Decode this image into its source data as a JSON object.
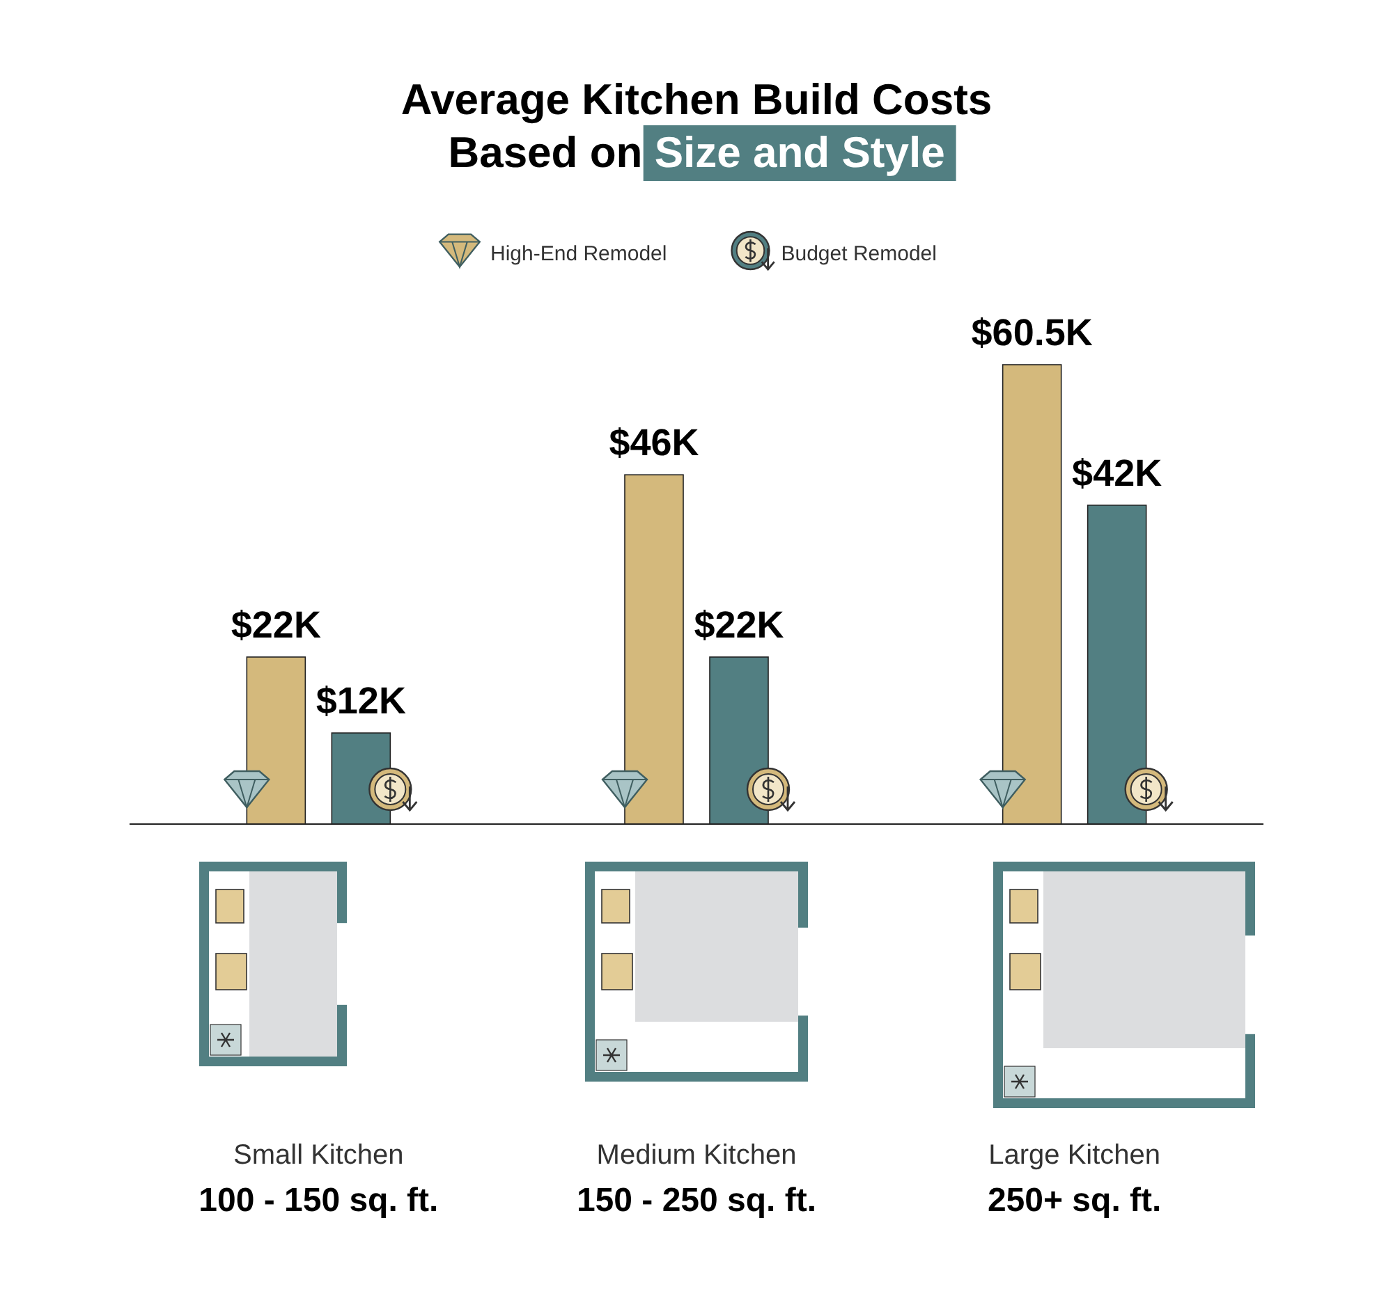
{
  "chart_data": {
    "type": "bar",
    "title": "Average Kitchen Build Costs\nBased on Size and Style",
    "categories": [
      "Small Kitchen\n100 - 150 sq. ft.",
      "Medium Kitchen\n150 - 250 sq. ft.",
      "Large Kitchen\n250+ sq. ft."
    ],
    "series": [
      {
        "name": "High-End Remodel",
        "color": "#d4b97c",
        "values": [
          22,
          46,
          60.5
        ],
        "value_labels": [
          "$22K",
          "$46K",
          "$60.5K"
        ]
      },
      {
        "name": "Budget Remodel",
        "color": "#527f82",
        "values": [
          12,
          22,
          42
        ],
        "value_labels": [
          "$12K",
          "$22K",
          "$42K"
        ]
      }
    ],
    "legend": "top"
  }
}
